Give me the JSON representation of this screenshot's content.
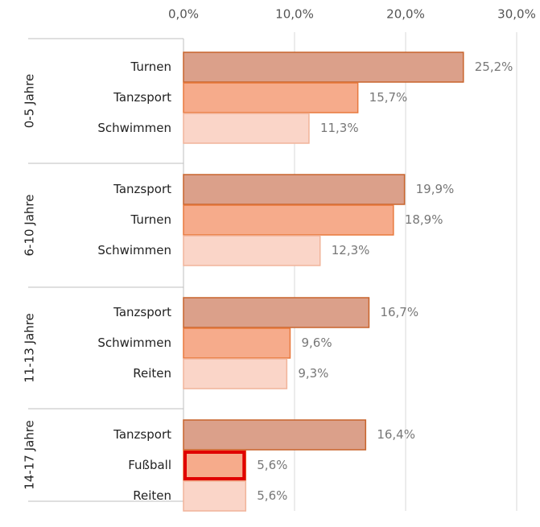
{
  "chart_data": {
    "type": "bar",
    "orientation": "horizontal",
    "xlim": [
      0,
      30
    ],
    "xticks": [
      {
        "value": 0,
        "label": "0,0%"
      },
      {
        "value": 10,
        "label": "10,0%"
      },
      {
        "value": 20,
        "label": "20,0%"
      },
      {
        "value": 30,
        "label": "30,0%"
      }
    ],
    "grid": true,
    "colors": [
      "#dba08a",
      "#f6ab8b",
      "#fad5c8"
    ],
    "edge_colors": [
      "#c8642c",
      "#e8793d",
      "#f1b49a"
    ],
    "highlight_color": "#e00000",
    "groups": [
      {
        "name": "0-5 Jahre",
        "categories": [
          "Turnen",
          "Tanzsport",
          "Schwimmen"
        ],
        "values": [
          25.2,
          15.7,
          11.3
        ],
        "value_labels": [
          "25,2%",
          "15,7%",
          "11,3%"
        ]
      },
      {
        "name": "6-10 Jahre",
        "categories": [
          "Tanzsport",
          "Turnen",
          "Schwimmen"
        ],
        "values": [
          19.9,
          18.9,
          12.3
        ],
        "value_labels": [
          "19,9%",
          "18,9%",
          "12,3%"
        ]
      },
      {
        "name": "11-13 Jahre",
        "categories": [
          "Tanzsport",
          "Schwimmen",
          "Reiten"
        ],
        "values": [
          16.7,
          9.6,
          9.3
        ],
        "value_labels": [
          "16,7%",
          "9,6%",
          "9,3%"
        ]
      },
      {
        "name": "14-17 Jahre",
        "categories": [
          "Tanzsport",
          "Fußball",
          "Reiten"
        ],
        "values": [
          16.4,
          5.6,
          5.6
        ],
        "value_labels": [
          "16,4%",
          "5,6%",
          "5,6%"
        ],
        "highlight": 1
      }
    ]
  }
}
